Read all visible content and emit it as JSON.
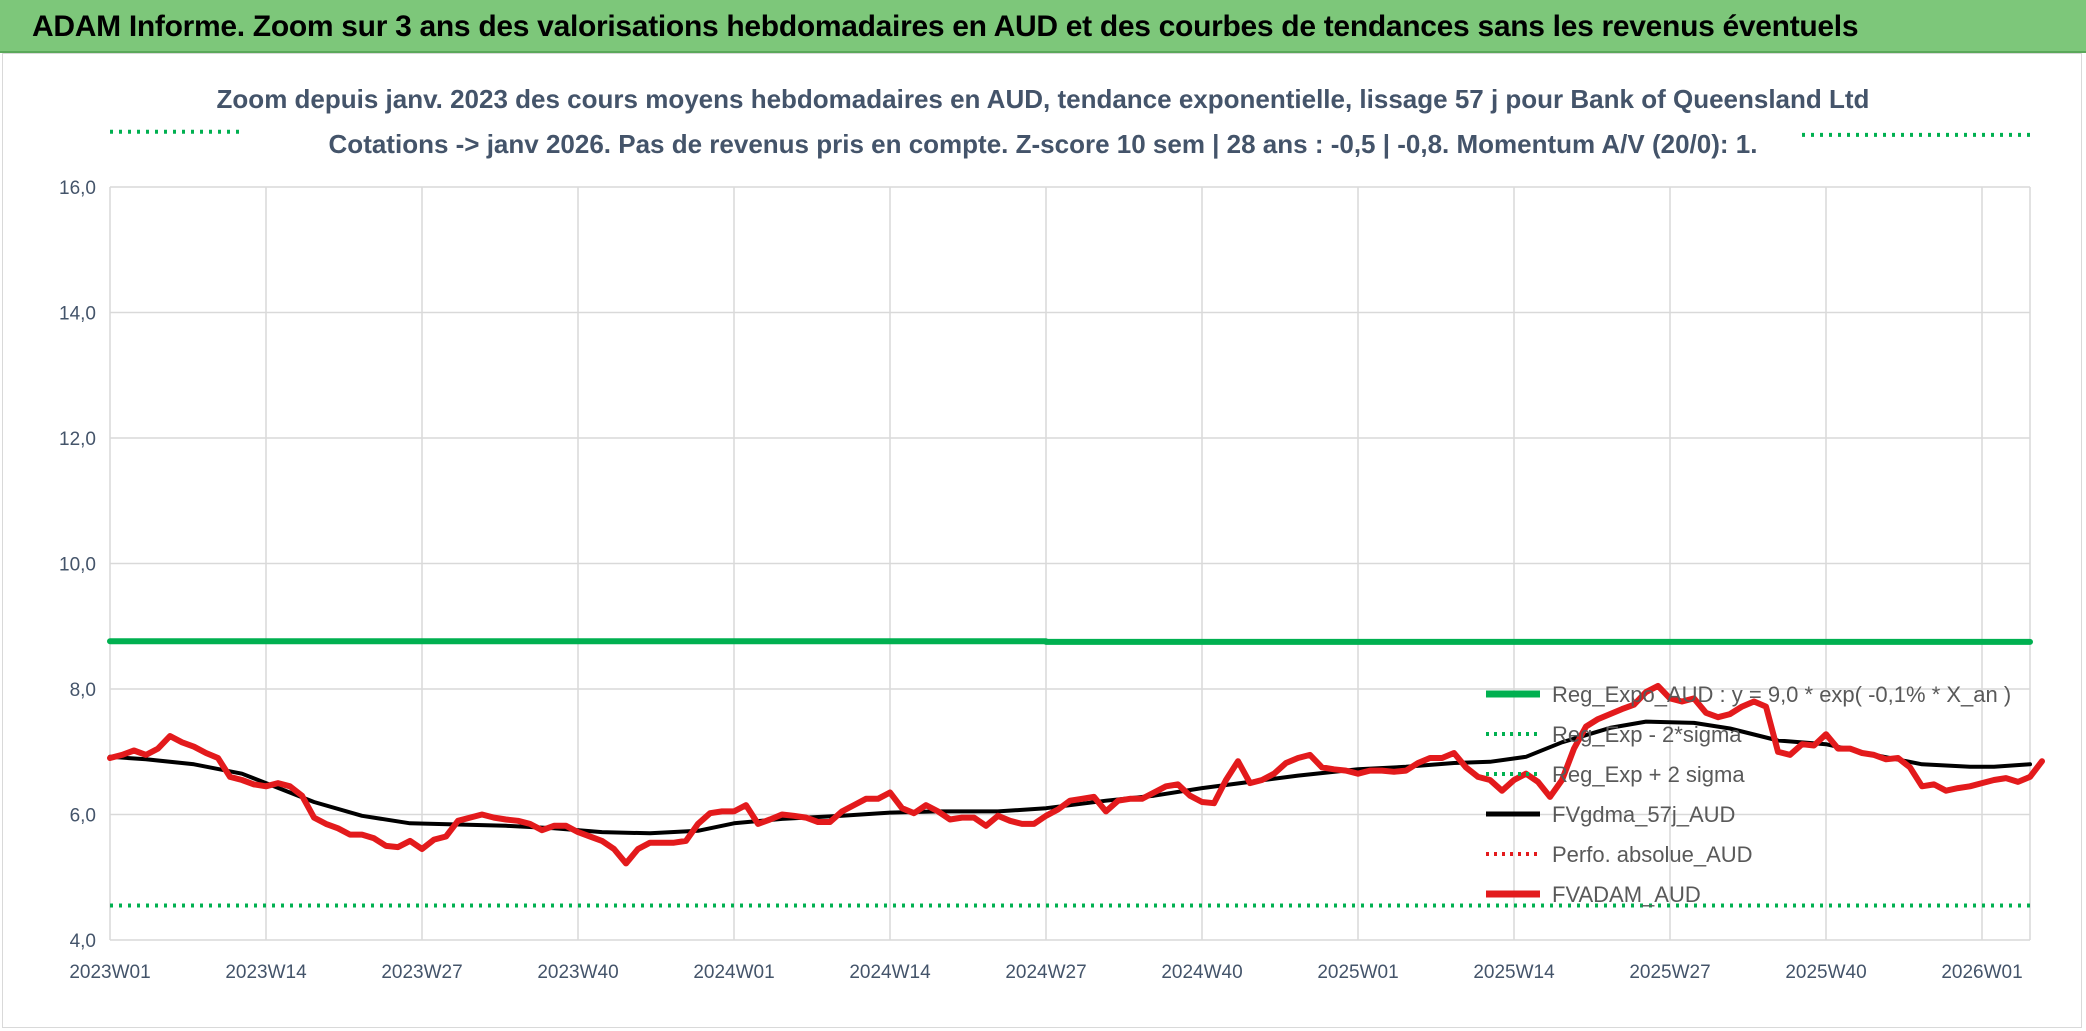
{
  "banner": {
    "title": "ADAM Informe. Zoom sur 3 ans des valorisations hebdomadaires en AUD et des courbes de tendances sans les revenus éventuels"
  },
  "chart_data": {
    "type": "line",
    "title": "Zoom depuis janv. 2023 des cours moyens hebdomadaires en AUD, tendance exponentielle, lissage 57 j pour Bank of Queensland Ltd",
    "subtitle": "Cotations -> janv 2026. Pas de revenus pris en compte. Z-score 10 sem | 28 ans : -0,5 | -0,8. Momentum A/V (20/0): 1.",
    "xlabel": "",
    "ylabel": "",
    "ylim": [
      4.0,
      16.0
    ],
    "y_ticks": [
      "4,0",
      "6,0",
      "8,0",
      "10,0",
      "12,0",
      "14,0",
      "16,0"
    ],
    "x_ticks": [
      "2023W01",
      "2023W14",
      "2023W27",
      "2023W40",
      "2024W01",
      "2024W14",
      "2024W27",
      "2024W40",
      "2025W01",
      "2025W14",
      "2025W27",
      "2025W40",
      "2026W01"
    ],
    "grid": true,
    "legend_position": "right",
    "colors": {
      "reg_expo": "#00b050",
      "sigma": "#00b050",
      "fvgdma": "#000000",
      "perfo": "#e31a1c",
      "fvadam": "#e31a1c",
      "grid": "#d9d9d9",
      "text": "#44546a"
    },
    "series": [
      {
        "name": "Reg_Expo_AUD : y = 9,0 * exp( -0,1% *  X_an )",
        "key": "reg_expo",
        "style": "solid-thick",
        "points": [
          [
            "2023W01",
            8.76
          ],
          [
            "2024W27",
            8.76
          ],
          [
            "2024W27",
            8.75
          ],
          [
            "2026W05",
            8.75
          ]
        ]
      },
      {
        "name": "Reg_Exp - 2*sigma",
        "key": "sigma_low",
        "style": "dotted",
        "points": [
          [
            "2023W01",
            4.55
          ],
          [
            "2026W05",
            4.55
          ]
        ]
      },
      {
        "name": "Reg_Exp + 2 sigma",
        "key": "sigma_high",
        "style": "dotted",
        "segments": [
          [
            [
              "2023W01",
              16.88
            ],
            [
              "2023W12",
              16.88
            ]
          ],
          [
            [
              "2025W38",
              16.83
            ],
            [
              "2026W05",
              16.83
            ]
          ]
        ]
      },
      {
        "name": "FVgdma_57j_AUD",
        "key": "fvgdma",
        "style": "solid",
        "points": [
          [
            "2023W01",
            6.92
          ],
          [
            "2023W04",
            6.88
          ],
          [
            "2023W08",
            6.8
          ],
          [
            "2023W12",
            6.65
          ],
          [
            "2023W14",
            6.5
          ],
          [
            "2023W18",
            6.2
          ],
          [
            "2023W22",
            5.98
          ],
          [
            "2023W26",
            5.86
          ],
          [
            "2023W30",
            5.84
          ],
          [
            "2023W34",
            5.82
          ],
          [
            "2023W38",
            5.78
          ],
          [
            "2023W42",
            5.72
          ],
          [
            "2023W46",
            5.7
          ],
          [
            "2023W50",
            5.74
          ],
          [
            "2024W01",
            5.86
          ],
          [
            "2024W05",
            5.93
          ],
          [
            "2024W10",
            5.98
          ],
          [
            "2024W14",
            6.03
          ],
          [
            "2024W18",
            6.05
          ],
          [
            "2024W23",
            6.05
          ],
          [
            "2024W27",
            6.1
          ],
          [
            "2024W32",
            6.22
          ],
          [
            "2024W36",
            6.3
          ],
          [
            "2024W40",
            6.42
          ],
          [
            "2024W44",
            6.52
          ],
          [
            "2024W48",
            6.62
          ],
          [
            "2025W01",
            6.72
          ],
          [
            "2025W05",
            6.76
          ],
          [
            "2025W09",
            6.82
          ],
          [
            "2025W12",
            6.84
          ],
          [
            "2025W15",
            6.92
          ],
          [
            "2025W18",
            7.15
          ],
          [
            "2025W22",
            7.38
          ],
          [
            "2025W25",
            7.48
          ],
          [
            "2025W29",
            7.46
          ],
          [
            "2025W32",
            7.37
          ],
          [
            "2025W36",
            7.18
          ],
          [
            "2025W40",
            7.12
          ],
          [
            "2025W44",
            6.95
          ],
          [
            "2025W48",
            6.8
          ],
          [
            "2025W52",
            6.76
          ],
          [
            "2026W02",
            6.76
          ],
          [
            "2026W05",
            6.8
          ]
        ]
      },
      {
        "name": "Perfo. absolue_AUD",
        "key": "perfo",
        "style": "dotted",
        "points": []
      },
      {
        "name": "FVADAM_AUD",
        "key": "fvadam",
        "style": "solid-thick",
        "points": [
          [
            "2023W01",
            6.9
          ],
          [
            "2023W02",
            6.95
          ],
          [
            "2023W03",
            7.02
          ],
          [
            "2023W04",
            6.95
          ],
          [
            "2023W05",
            7.05
          ],
          [
            "2023W06",
            7.25
          ],
          [
            "2023W07",
            7.15
          ],
          [
            "2023W08",
            7.08
          ],
          [
            "2023W09",
            6.98
          ],
          [
            "2023W10",
            6.9
          ],
          [
            "2023W11",
            6.6
          ],
          [
            "2023W12",
            6.55
          ],
          [
            "2023W13",
            6.48
          ],
          [
            "2023W14",
            6.45
          ],
          [
            "2023W15",
            6.5
          ],
          [
            "2023W16",
            6.45
          ],
          [
            "2023W17",
            6.3
          ],
          [
            "2023W18",
            5.95
          ],
          [
            "2023W19",
            5.85
          ],
          [
            "2023W20",
            5.78
          ],
          [
            "2023W21",
            5.68
          ],
          [
            "2023W22",
            5.68
          ],
          [
            "2023W23",
            5.62
          ],
          [
            "2023W24",
            5.5
          ],
          [
            "2023W25",
            5.48
          ],
          [
            "2023W26",
            5.58
          ],
          [
            "2023W27",
            5.45
          ],
          [
            "2023W28",
            5.6
          ],
          [
            "2023W29",
            5.65
          ],
          [
            "2023W30",
            5.9
          ],
          [
            "2023W31",
            5.95
          ],
          [
            "2023W32",
            6.0
          ],
          [
            "2023W33",
            5.95
          ],
          [
            "2023W34",
            5.92
          ],
          [
            "2023W35",
            5.9
          ],
          [
            "2023W36",
            5.85
          ],
          [
            "2023W37",
            5.75
          ],
          [
            "2023W38",
            5.82
          ],
          [
            "2023W39",
            5.82
          ],
          [
            "2023W40",
            5.72
          ],
          [
            "2023W41",
            5.65
          ],
          [
            "2023W42",
            5.58
          ],
          [
            "2023W43",
            5.45
          ],
          [
            "2023W44",
            5.22
          ],
          [
            "2023W45",
            5.45
          ],
          [
            "2023W46",
            5.55
          ],
          [
            "2023W47",
            5.55
          ],
          [
            "2023W48",
            5.55
          ],
          [
            "2023W49",
            5.58
          ],
          [
            "2023W50",
            5.85
          ],
          [
            "2023W51",
            6.02
          ],
          [
            "2023W52",
            6.05
          ],
          [
            "2024W01",
            6.05
          ],
          [
            "2024W02",
            6.15
          ],
          [
            "2024W03",
            5.85
          ],
          [
            "2024W04",
            5.92
          ],
          [
            "2024W05",
            6.0
          ],
          [
            "2024W06",
            5.98
          ],
          [
            "2024W07",
            5.95
          ],
          [
            "2024W08",
            5.88
          ],
          [
            "2024W09",
            5.88
          ],
          [
            "2024W10",
            6.05
          ],
          [
            "2024W11",
            6.15
          ],
          [
            "2024W12",
            6.25
          ],
          [
            "2024W13",
            6.25
          ],
          [
            "2024W14",
            6.35
          ],
          [
            "2024W15",
            6.1
          ],
          [
            "2024W16",
            6.02
          ],
          [
            "2024W17",
            6.15
          ],
          [
            "2024W18",
            6.05
          ],
          [
            "2024W19",
            5.92
          ],
          [
            "2024W20",
            5.95
          ],
          [
            "2024W21",
            5.95
          ],
          [
            "2024W22",
            5.82
          ],
          [
            "2024W23",
            5.98
          ],
          [
            "2024W24",
            5.9
          ],
          [
            "2024W25",
            5.85
          ],
          [
            "2024W26",
            5.85
          ],
          [
            "2024W27",
            5.98
          ],
          [
            "2024W28",
            6.08
          ],
          [
            "2024W29",
            6.22
          ],
          [
            "2024W30",
            6.25
          ],
          [
            "2024W31",
            6.28
          ],
          [
            "2024W32",
            6.05
          ],
          [
            "2024W33",
            6.22
          ],
          [
            "2024W34",
            6.25
          ],
          [
            "2024W35",
            6.25
          ],
          [
            "2024W36",
            6.35
          ],
          [
            "2024W37",
            6.45
          ],
          [
            "2024W38",
            6.48
          ],
          [
            "2024W39",
            6.3
          ],
          [
            "2024W40",
            6.2
          ],
          [
            "2024W41",
            6.18
          ],
          [
            "2024W42",
            6.55
          ],
          [
            "2024W43",
            6.85
          ],
          [
            "2024W44",
            6.5
          ],
          [
            "2024W45",
            6.55
          ],
          [
            "2024W46",
            6.65
          ],
          [
            "2024W47",
            6.82
          ],
          [
            "2024W48",
            6.9
          ],
          [
            "2024W49",
            6.95
          ],
          [
            "2024W50",
            6.75
          ],
          [
            "2024W51",
            6.72
          ],
          [
            "2024W52",
            6.7
          ],
          [
            "2025W01",
            6.65
          ],
          [
            "2025W02",
            6.7
          ],
          [
            "2025W03",
            6.7
          ],
          [
            "2025W04",
            6.68
          ],
          [
            "2025W05",
            6.7
          ],
          [
            "2025W06",
            6.82
          ],
          [
            "2025W07",
            6.9
          ],
          [
            "2025W08",
            6.9
          ],
          [
            "2025W09",
            6.98
          ],
          [
            "2025W10",
            6.75
          ],
          [
            "2025W11",
            6.6
          ],
          [
            "2025W12",
            6.55
          ],
          [
            "2025W13",
            6.38
          ],
          [
            "2025W14",
            6.55
          ],
          [
            "2025W15",
            6.65
          ],
          [
            "2025W16",
            6.52
          ],
          [
            "2025W17",
            6.28
          ],
          [
            "2025W18",
            6.55
          ],
          [
            "2025W19",
            7.05
          ],
          [
            "2025W20",
            7.4
          ],
          [
            "2025W21",
            7.52
          ],
          [
            "2025W22",
            7.6
          ],
          [
            "2025W23",
            7.68
          ],
          [
            "2025W24",
            7.75
          ],
          [
            "2025W25",
            7.95
          ],
          [
            "2025W26",
            8.05
          ],
          [
            "2025W27",
            7.85
          ],
          [
            "2025W28",
            7.8
          ],
          [
            "2025W29",
            7.85
          ],
          [
            "2025W30",
            7.62
          ],
          [
            "2025W31",
            7.55
          ],
          [
            "2025W32",
            7.6
          ],
          [
            "2025W33",
            7.72
          ],
          [
            "2025W34",
            7.8
          ],
          [
            "2025W35",
            7.72
          ],
          [
            "2025W36",
            7.0
          ],
          [
            "2025W37",
            6.95
          ],
          [
            "2025W38",
            7.12
          ],
          [
            "2025W39",
            7.1
          ],
          [
            "2025W40",
            7.28
          ],
          [
            "2025W41",
            7.05
          ],
          [
            "2025W42",
            7.05
          ],
          [
            "2025W43",
            6.98
          ],
          [
            "2025W44",
            6.95
          ],
          [
            "2025W45",
            6.88
          ],
          [
            "2025W46",
            6.9
          ],
          [
            "2025W47",
            6.75
          ],
          [
            "2025W48",
            6.45
          ],
          [
            "2025W49",
            6.48
          ],
          [
            "2025W50",
            6.38
          ],
          [
            "2025W51",
            6.42
          ],
          [
            "2025W52",
            6.45
          ],
          [
            "2026W01",
            6.5
          ],
          [
            "2026W02",
            6.55
          ],
          [
            "2026W03",
            6.58
          ],
          [
            "2026W04",
            6.52
          ],
          [
            "2026W05",
            6.6
          ],
          [
            "2026W06",
            6.85
          ]
        ]
      }
    ]
  }
}
